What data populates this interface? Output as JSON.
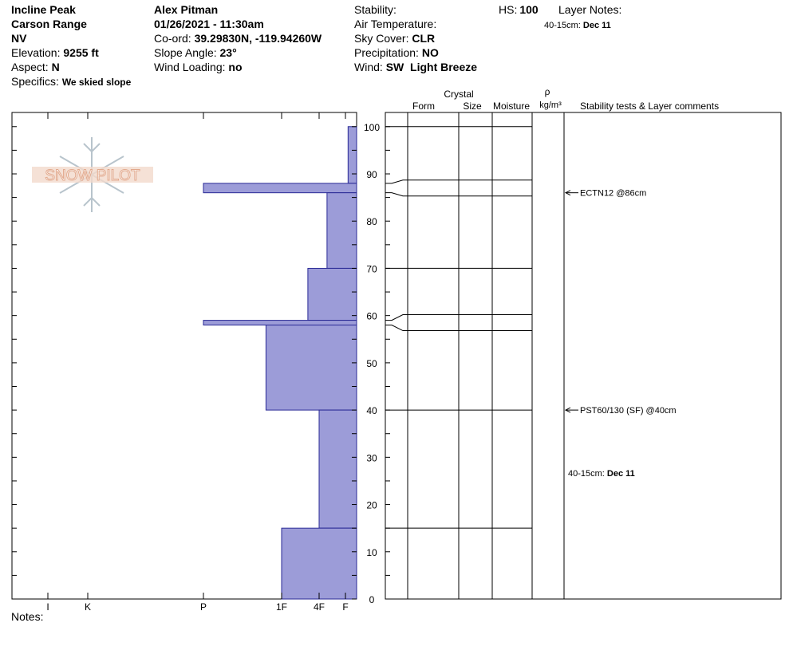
{
  "header": {
    "location": "Incline Peak",
    "range": "Carson Range",
    "state": "NV",
    "elevation_label": "Elevation:",
    "elevation": "9255 ft",
    "aspect_label": "Aspect:",
    "aspect": "N",
    "specifics_label": "Specifics:",
    "specifics": "We skied slope",
    "observer": "Alex Pitman",
    "datetime": "01/26/2021 - 11:30am",
    "coord_label": "Co-ord:",
    "coord": "39.29830N, -119.94260W",
    "slope_label": "Slope Angle:",
    "slope": "23°",
    "wind_loading_label": "Wind Loading:",
    "wind_loading": "no",
    "stability_label": "Stability:",
    "air_temp_label": "Air Temperature:",
    "sky_label": "Sky Cover:",
    "sky": "CLR",
    "precip_label": "Precipitation:",
    "precip": "NO",
    "wind_label": "Wind:",
    "wind": "SW  Light Breeze",
    "hs_label": "HS:",
    "hs": "100",
    "layer_notes_label": "Layer Notes:",
    "layer_note_range": "40-15cm:",
    "layer_note_text": "Dec 11"
  },
  "logo": "SNOW PILOT",
  "columns": {
    "crystal": "Crystal",
    "form": "Form",
    "size": "Size",
    "moisture": "Moisture",
    "density_symbol": "ρ",
    "density_unit": "kg/m³",
    "comments": "Stability tests & Layer comments"
  },
  "notes_label": "Notes:",
  "chart_data": {
    "type": "hardness",
    "ylim": [
      0,
      103
    ],
    "yticks": [
      0,
      10,
      20,
      30,
      40,
      50,
      60,
      70,
      80,
      90,
      100
    ],
    "minor_yticks": [
      5,
      15,
      25,
      35,
      45,
      55,
      65,
      75,
      85,
      95
    ],
    "xticks": [
      {
        "value": 1,
        "label": "F"
      },
      {
        "value": 2,
        "label": "4F"
      },
      {
        "value": 3,
        "label": "1F"
      },
      {
        "value": 4,
        "label": "P"
      },
      {
        "value": 5,
        "label": "K"
      },
      {
        "value": 6,
        "label": "I"
      }
    ],
    "color": "#9c9cd8",
    "layer_tops": [
      100,
      88,
      86,
      70,
      59,
      58,
      40,
      15
    ],
    "layer_bottoms": [
      88,
      86,
      70,
      59,
      58,
      40,
      15,
      0
    ],
    "layer_hardness": [
      0.9,
      4,
      1.7,
      2.3,
      4,
      3.2,
      2,
      3
    ],
    "tests": [
      {
        "text": "ECTN12 @86cm",
        "height": 86
      },
      {
        "text": "PST60/130 (SF) @40cm",
        "height": 40
      }
    ]
  }
}
